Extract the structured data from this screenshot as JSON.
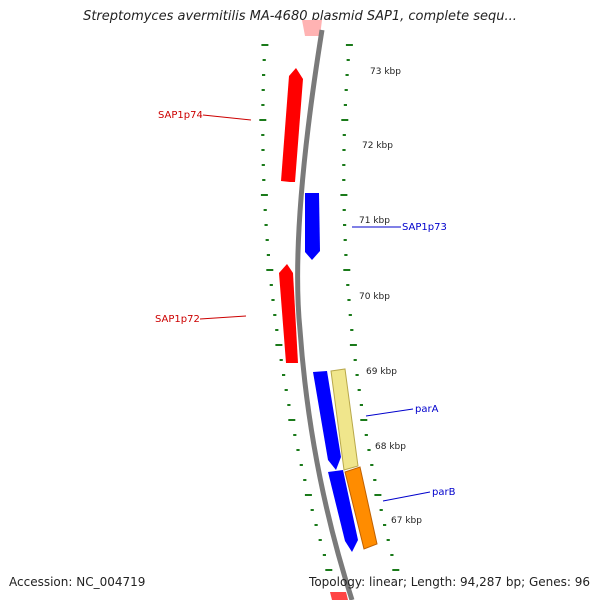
{
  "title": "Streptomyces avermitilis MA-4680 plasmid SAP1, complete sequ...",
  "footer": {
    "accession": "Accession: NC_004719",
    "topology": "Topology: linear; Length: 94,287 bp; Genes: 96"
  },
  "scale_labels": [
    "73 kbp",
    "72 kbp",
    "71 kbp",
    "70 kbp",
    "69 kbp",
    "68 kbp",
    "67 kbp"
  ],
  "genes": [
    {
      "name": "SAP1p74",
      "strand": "minus",
      "color": "#ff0000",
      "label_color": "#cc0000"
    },
    {
      "name": "SAP1p73",
      "strand": "plus",
      "color": "#0000ff",
      "label_color": "#0000cc"
    },
    {
      "name": "SAP1p72",
      "strand": "minus",
      "color": "#ff0000",
      "label_color": "#cc0000"
    },
    {
      "name": "parA",
      "strand": "plus",
      "color": "#0000ff",
      "label_color": "#0000cc"
    },
    {
      "name": "parB",
      "strand": "plus",
      "color": "#0000ff",
      "label_color": "#0000cc"
    }
  ],
  "feature_colors": {
    "backbone": "#7a7a7a",
    "cds_plus": "#0000ff",
    "cds_minus": "#ff0000",
    "partition_a": "#f0e68c",
    "partition_b": "#ff8c00",
    "tick": "#1a7a1a"
  }
}
